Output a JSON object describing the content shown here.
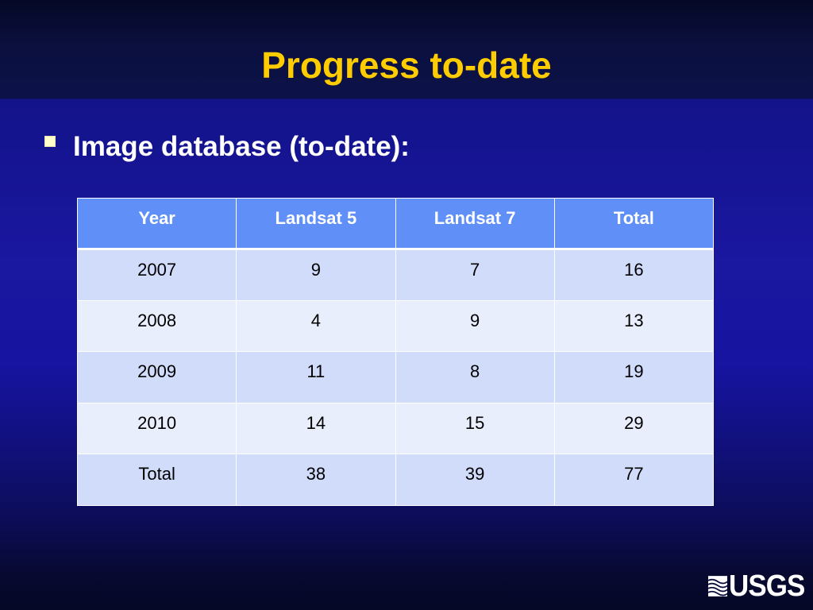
{
  "slide": {
    "title": "Progress to-date",
    "bullet": "Image database (to-date):"
  },
  "table": {
    "headers": [
      "Year",
      "Landsat 5",
      "Landsat 7",
      "Total"
    ],
    "rows": [
      [
        "2007",
        "9",
        "7",
        "16"
      ],
      [
        "2008",
        "4",
        "9",
        "13"
      ],
      [
        "2009",
        "11",
        "8",
        "19"
      ],
      [
        "2010",
        "14",
        "15",
        "29"
      ],
      [
        "Total",
        "38",
        "39",
        "77"
      ]
    ]
  },
  "logo": {
    "text": "USGS",
    "icon": "usgs-wave-icon"
  },
  "colors": {
    "title": "#ffcc00",
    "header_bg": "#5f8ff7",
    "row_odd": "#d1dcfa",
    "row_even": "#e9eefc",
    "background": "#1a17a0"
  }
}
